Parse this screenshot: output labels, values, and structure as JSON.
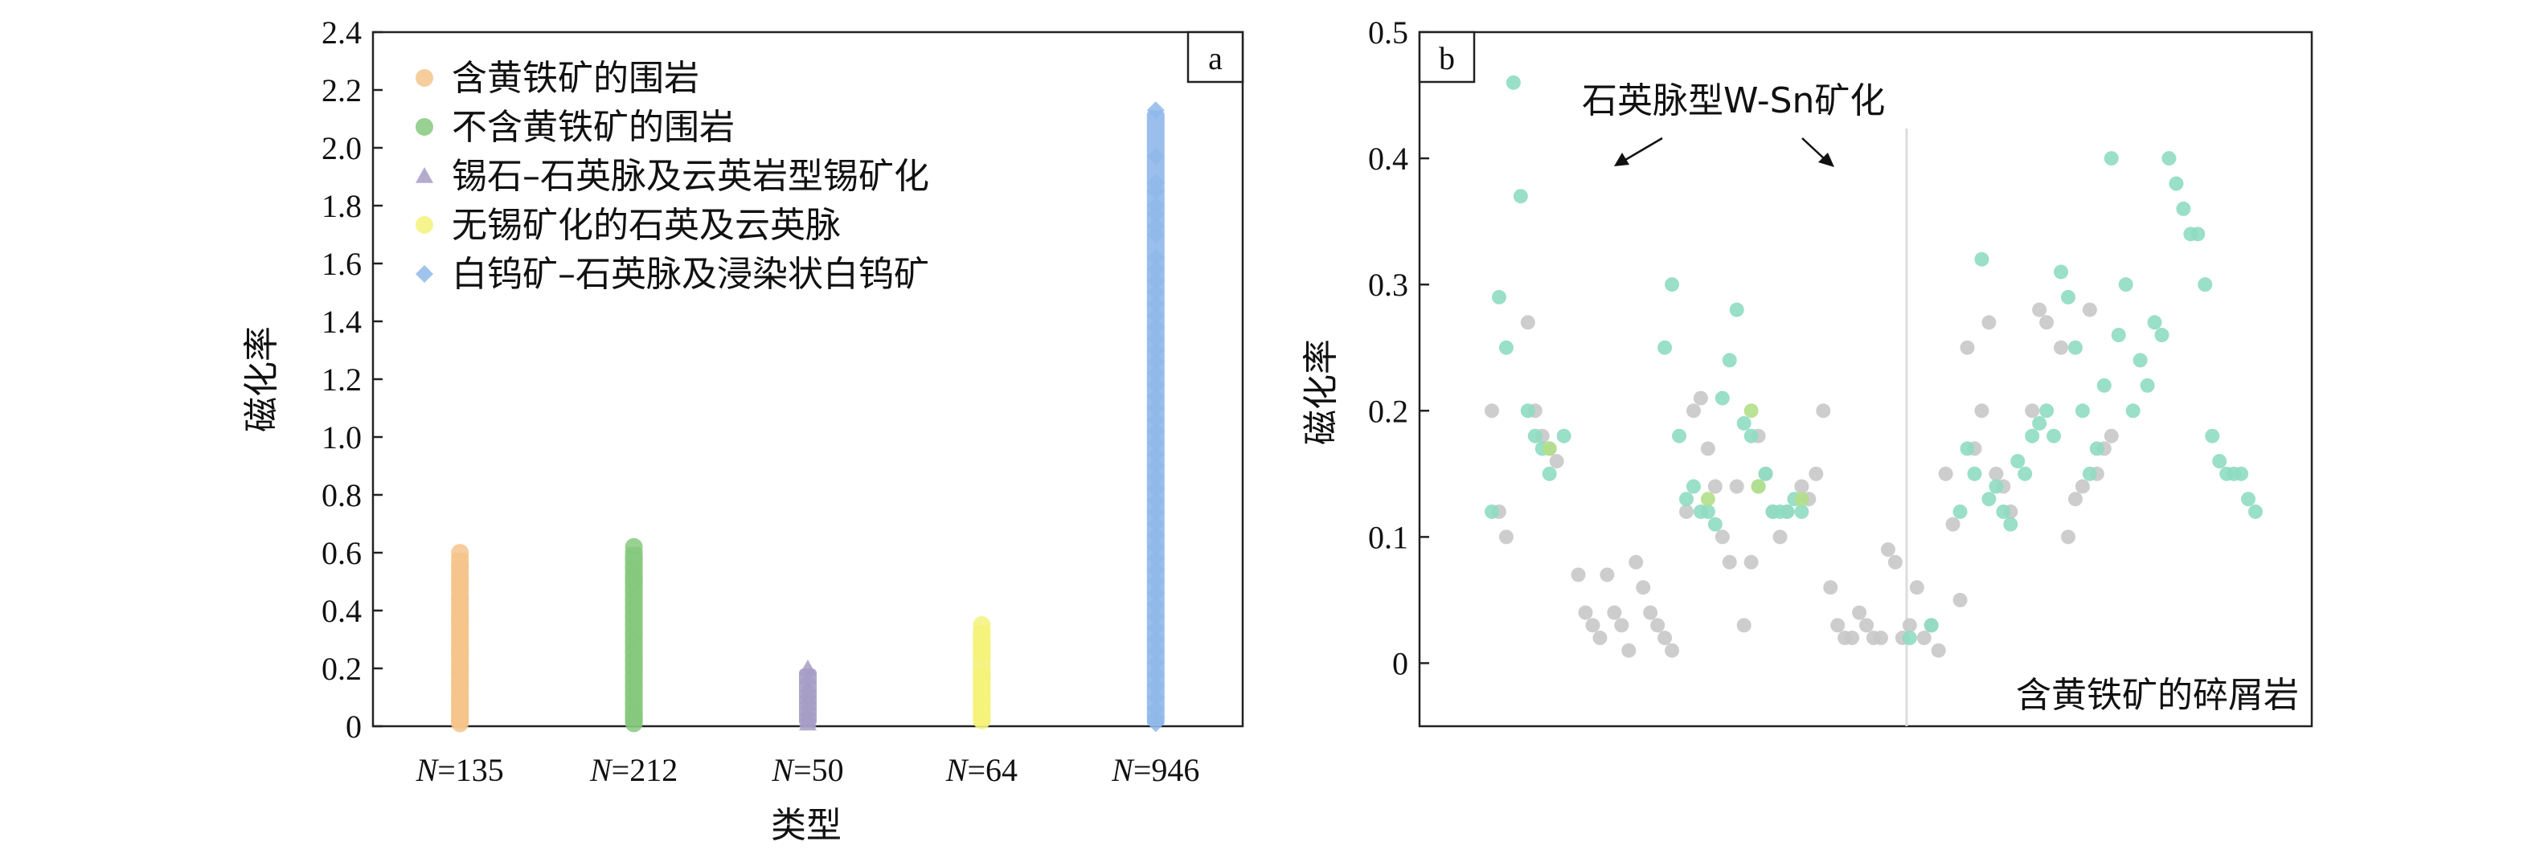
{
  "chart_data": [
    {
      "panel_label": "a",
      "type": "scatter",
      "xlabel": "类型",
      "ylabel": "磁化率",
      "ylim": [
        0,
        2.4
      ],
      "yticks": [
        "0",
        "0.2",
        "0.4",
        "0.6",
        "0.8",
        "1.0",
        "1.2",
        "1.4",
        "1.6",
        "1.8",
        "2.0",
        "2.2",
        "2.4"
      ],
      "legend_position": "top-left",
      "categories": [
        {
          "n_prefix": "N",
          "n_text": "=135"
        },
        {
          "n_prefix": "N",
          "n_text": "=212"
        },
        {
          "n_prefix": "N",
          "n_text": "=50"
        },
        {
          "n_prefix": "N",
          "n_text": "=64"
        },
        {
          "n_prefix": "N",
          "n_text": "=946"
        }
      ],
      "series": [
        {
          "name": "含黄铁矿的围岩",
          "marker": "circle",
          "color": "#f5c48c",
          "max": 0.6,
          "values": [
            0.6,
            0.55,
            0.51,
            0.48,
            0.44,
            0.41,
            0.38,
            0.36,
            0.33,
            0.3,
            0.27,
            0.25,
            0.22,
            0.2,
            0.18,
            0.15,
            0.13,
            0.1,
            0.08,
            0.06,
            0.04,
            0.02,
            0.01
          ]
        },
        {
          "name": "不含黄铁矿的围岩",
          "marker": "circle",
          "color": "#86c97e",
          "max": 0.62,
          "values": [
            0.62,
            0.58,
            0.55,
            0.52,
            0.5,
            0.47,
            0.44,
            0.41,
            0.38,
            0.35,
            0.32,
            0.29,
            0.26,
            0.23,
            0.2,
            0.17,
            0.14,
            0.11,
            0.08,
            0.05,
            0.03,
            0.01
          ]
        },
        {
          "name": "锡石–石英脉及云英岩型锡矿化",
          "marker": "triangle",
          "color": "#a69ec6",
          "max": 0.2,
          "values": [
            0.2,
            0.17,
            0.14,
            0.12,
            0.1,
            0.08,
            0.06,
            0.04,
            0.02,
            0.01
          ]
        },
        {
          "name": "无锡矿化的石英及云英脉",
          "marker": "circle",
          "color": "#f4f27a",
          "max": 0.35,
          "values": [
            0.35,
            0.3,
            0.27,
            0.25,
            0.18,
            0.16,
            0.13,
            0.1,
            0.07,
            0.04,
            0.02
          ]
        },
        {
          "name": "白钨矿–石英脉及浸染状白钨矿",
          "marker": "diamond",
          "color": "#8fb8ea",
          "max": 2.13,
          "values": [
            2.13,
            1.97,
            1.88,
            1.85,
            1.8,
            1.77,
            1.73,
            1.7,
            1.62,
            1.58,
            1.54,
            1.5,
            1.46,
            1.42,
            1.38,
            1.34,
            1.3,
            1.26,
            1.22,
            1.18,
            1.14,
            1.1,
            1.06,
            1.02,
            0.98,
            0.94,
            0.9,
            0.86,
            0.82,
            0.78,
            0.74,
            0.7,
            0.66,
            0.62,
            0.58,
            0.54,
            0.5,
            0.46,
            0.42,
            0.38,
            0.34,
            0.3,
            0.26,
            0.22,
            0.18,
            0.14,
            0.1,
            0.06,
            0.03,
            0.01
          ]
        }
      ]
    },
    {
      "panel_label": "b",
      "type": "scatter",
      "ylabel": "磁化率",
      "ylim": [
        -0.05,
        0.5
      ],
      "yticks": [
        "0",
        "0.1",
        "0.2",
        "0.3",
        "0.4",
        "0.5"
      ],
      "annotations": [
        "石英脉型W-Sn矿化",
        "含黄铁矿的碎屑岩"
      ],
      "series": [
        {
          "name": "",
          "color": "#c8c8c8",
          "points": [
            [
              1,
              0.2
            ],
            [
              2,
              0.12
            ],
            [
              3,
              0.1
            ],
            [
              6,
              0.27
            ],
            [
              7,
              0.2
            ],
            [
              8,
              0.18
            ],
            [
              9,
              0.17
            ],
            [
              10,
              0.16
            ],
            [
              13,
              0.07
            ],
            [
              14,
              0.04
            ],
            [
              15,
              0.03
            ],
            [
              16,
              0.02
            ],
            [
              17,
              0.07
            ],
            [
              18,
              0.04
            ],
            [
              19,
              0.03
            ],
            [
              20,
              0.01
            ],
            [
              21,
              0.08
            ],
            [
              22,
              0.06
            ],
            [
              23,
              0.04
            ],
            [
              24,
              0.03
            ],
            [
              25,
              0.02
            ],
            [
              26,
              0.01
            ],
            [
              28,
              0.12
            ],
            [
              29,
              0.2
            ],
            [
              30,
              0.21
            ],
            [
              31,
              0.17
            ],
            [
              32,
              0.14
            ],
            [
              33,
              0.1
            ],
            [
              34,
              0.08
            ],
            [
              35,
              0.14
            ],
            [
              36,
              0.03
            ],
            [
              37,
              0.08
            ],
            [
              38,
              0.18
            ],
            [
              39,
              0.15
            ],
            [
              40,
              0.12
            ],
            [
              41,
              0.1
            ],
            [
              42,
              0.12
            ],
            [
              44,
              0.14
            ],
            [
              45,
              0.13
            ],
            [
              46,
              0.15
            ],
            [
              47,
              0.2
            ],
            [
              48,
              0.06
            ],
            [
              49,
              0.03
            ],
            [
              50,
              0.02
            ],
            [
              51,
              0.02
            ],
            [
              52,
              0.04
            ],
            [
              53,
              0.03
            ],
            [
              54,
              0.02
            ],
            [
              55,
              0.02
            ],
            [
              56,
              0.09
            ],
            [
              57,
              0.08
            ],
            [
              58,
              0.02
            ],
            [
              59,
              0.03
            ],
            [
              60,
              0.06
            ],
            [
              61,
              0.02
            ],
            [
              62,
              0.03
            ],
            [
              63,
              0.01
            ],
            [
              64,
              0.15
            ],
            [
              65,
              0.11
            ],
            [
              66,
              0.05
            ],
            [
              67,
              0.25
            ],
            [
              68,
              0.17
            ],
            [
              69,
              0.2
            ],
            [
              70,
              0.27
            ],
            [
              71,
              0.15
            ],
            [
              72,
              0.14
            ],
            [
              73,
              0.12
            ],
            [
              76,
              0.2
            ],
            [
              77,
              0.28
            ],
            [
              78,
              0.27
            ],
            [
              80,
              0.25
            ],
            [
              81,
              0.1
            ],
            [
              82,
              0.13
            ],
            [
              83,
              0.14
            ],
            [
              84,
              0.28
            ],
            [
              85,
              0.15
            ],
            [
              86,
              0.17
            ],
            [
              87,
              0.18
            ]
          ]
        },
        {
          "name": "",
          "color": "#8fdcc2",
          "points": [
            [
              1,
              0.12
            ],
            [
              2,
              0.29
            ],
            [
              3,
              0.25
            ],
            [
              4,
              0.46
            ],
            [
              5,
              0.37
            ],
            [
              6,
              0.2
            ],
            [
              7,
              0.18
            ],
            [
              8,
              0.17
            ],
            [
              9,
              0.15
            ],
            [
              11,
              0.18
            ],
            [
              25,
              0.25
            ],
            [
              26,
              0.3
            ],
            [
              27,
              0.18
            ],
            [
              28,
              0.13
            ],
            [
              29,
              0.14
            ],
            [
              30,
              0.12
            ],
            [
              31,
              0.12
            ],
            [
              32,
              0.11
            ],
            [
              33,
              0.21
            ],
            [
              34,
              0.24
            ],
            [
              35,
              0.28
            ],
            [
              36,
              0.19
            ],
            [
              37,
              0.18
            ],
            [
              38,
              0.14
            ],
            [
              39,
              0.15
            ],
            [
              40,
              0.12
            ],
            [
              41,
              0.12
            ],
            [
              42,
              0.12
            ],
            [
              43,
              0.13
            ],
            [
              44,
              0.12
            ],
            [
              59,
              0.02
            ],
            [
              62,
              0.03
            ],
            [
              66,
              0.12
            ],
            [
              67,
              0.17
            ],
            [
              68,
              0.15
            ],
            [
              69,
              0.32
            ],
            [
              70,
              0.13
            ],
            [
              71,
              0.14
            ],
            [
              72,
              0.12
            ],
            [
              73,
              0.11
            ],
            [
              74,
              0.16
            ],
            [
              75,
              0.15
            ],
            [
              76,
              0.18
            ],
            [
              77,
              0.19
            ],
            [
              78,
              0.2
            ],
            [
              79,
              0.18
            ],
            [
              80,
              0.31
            ],
            [
              81,
              0.29
            ],
            [
              82,
              0.25
            ],
            [
              83,
              0.2
            ],
            [
              84,
              0.15
            ],
            [
              85,
              0.17
            ],
            [
              86,
              0.22
            ],
            [
              87,
              0.4
            ],
            [
              88,
              0.26
            ],
            [
              89,
              0.3
            ],
            [
              90,
              0.2
            ],
            [
              91,
              0.24
            ],
            [
              92,
              0.22
            ],
            [
              93,
              0.27
            ],
            [
              94,
              0.26
            ],
            [
              95,
              0.4
            ],
            [
              96,
              0.38
            ],
            [
              97,
              0.36
            ],
            [
              98,
              0.34
            ],
            [
              99,
              0.34
            ],
            [
              100,
              0.3
            ],
            [
              101,
              0.18
            ],
            [
              102,
              0.16
            ],
            [
              103,
              0.15
            ],
            [
              104,
              0.15
            ],
            [
              105,
              0.15
            ],
            [
              106,
              0.13
            ],
            [
              107,
              0.12
            ]
          ]
        },
        {
          "name": "",
          "color": "#b2df8a",
          "points": [
            [
              9,
              0.17
            ],
            [
              31,
              0.13
            ],
            [
              37,
              0.2
            ],
            [
              38,
              0.14
            ],
            [
              44,
              0.13
            ]
          ]
        }
      ]
    }
  ]
}
